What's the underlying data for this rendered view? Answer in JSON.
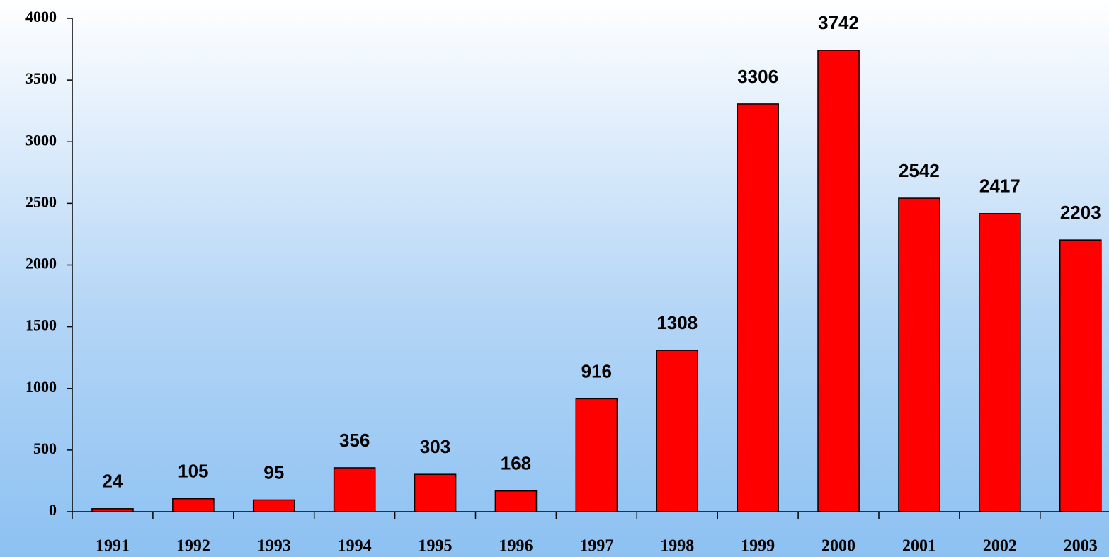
{
  "chart_data": {
    "type": "bar",
    "categories": [
      "1991",
      "1992",
      "1993",
      "1994",
      "1995",
      "1996",
      "1997",
      "1998",
      "1999",
      "2000",
      "2001",
      "2002",
      "2003"
    ],
    "values": [
      24,
      105,
      95,
      356,
      303,
      168,
      916,
      1308,
      3306,
      3742,
      2542,
      2417,
      2203
    ],
    "color": "#ff0000",
    "ylim": [
      0,
      4000
    ],
    "yticks": [
      0,
      500,
      1000,
      1500,
      2000,
      2500,
      3000,
      3500,
      4000
    ],
    "grid": false
  }
}
